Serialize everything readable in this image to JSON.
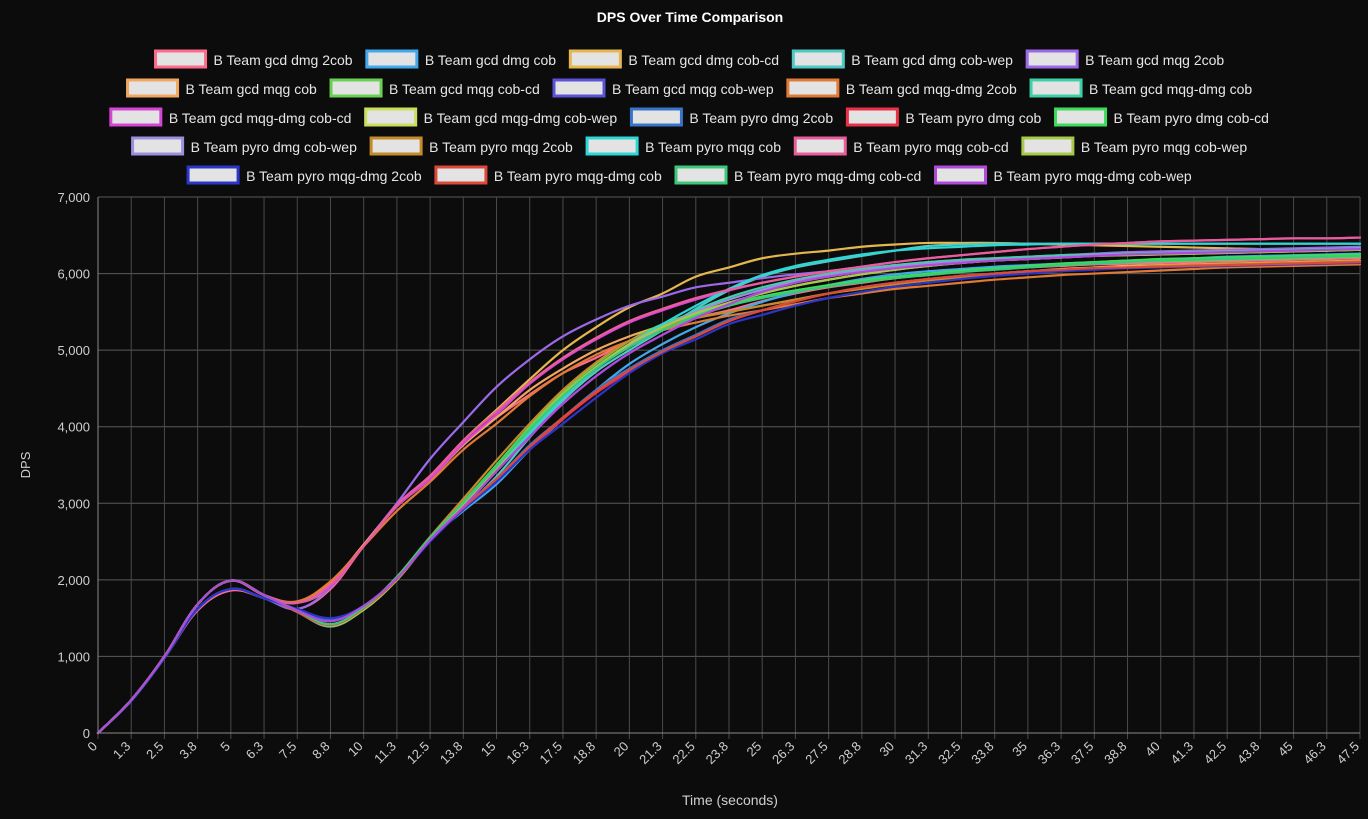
{
  "chart_data": {
    "type": "line",
    "title": "DPS Over Time Comparison",
    "xlabel": "Time (seconds)",
    "ylabel": "DPS",
    "ylim": [
      0,
      7000
    ],
    "yticks": [
      0,
      1000,
      2000,
      3000,
      4000,
      5000,
      6000,
      7000
    ],
    "ytick_labels": [
      "0",
      "1,000",
      "2,000",
      "3,000",
      "4,000",
      "5,000",
      "6,000",
      "7,000"
    ],
    "x_categories": [
      "0",
      "1.3",
      "2.5",
      "3.8",
      "5",
      "6.3",
      "7.5",
      "8.8",
      "10",
      "11.3",
      "12.5",
      "13.8",
      "15",
      "16.3",
      "17.5",
      "18.8",
      "20",
      "21.3",
      "22.5",
      "23.8",
      "25",
      "26.3",
      "27.5",
      "28.8",
      "30",
      "31.3",
      "32.5",
      "33.8",
      "35",
      "36.3",
      "37.5",
      "38.8",
      "40",
      "41.3",
      "42.5",
      "43.8",
      "45",
      "46.3",
      "47.5"
    ],
    "grid": true,
    "legend_position": "top",
    "series": [
      {
        "name": "B Team gcd dmg 2cob",
        "color": "#ff6b8a",
        "values": [
          0,
          420,
          980,
          1600,
          1860,
          1760,
          1620,
          1880,
          2440,
          2960,
          3320,
          3780,
          4120,
          4420,
          4700,
          4900,
          5120,
          5260,
          5420,
          5520,
          5640,
          5740,
          5820,
          5880,
          5940,
          5990,
          6030,
          6060,
          6080,
          6100,
          6120,
          6130,
          6140,
          6150,
          6160,
          6170,
          6180,
          6190,
          6200
        ]
      },
      {
        "name": "B Team gcd dmg cob",
        "color": "#41a9ec",
        "values": [
          0,
          430,
          1000,
          1680,
          1990,
          1800,
          1580,
          1400,
          1620,
          2020,
          2530,
          2900,
          3250,
          3700,
          4100,
          4480,
          4820,
          5080,
          5300,
          5480,
          5630,
          5750,
          5850,
          5930,
          5990,
          6030,
          6060,
          6090,
          6110,
          6130,
          6150,
          6170,
          6180,
          6200,
          6220,
          6230,
          6240,
          6250,
          6260
        ]
      },
      {
        "name": "B Team gcd dmg cob-cd",
        "color": "#e6b74f",
        "values": [
          0,
          430,
          1000,
          1680,
          1990,
          1800,
          1700,
          1910,
          2450,
          2980,
          3340,
          3820,
          4220,
          4620,
          5000,
          5300,
          5560,
          5740,
          5960,
          6080,
          6200,
          6260,
          6300,
          6350,
          6380,
          6400,
          6400,
          6400,
          6390,
          6380,
          6370,
          6360,
          6350,
          6340,
          6330,
          6320,
          6320,
          6310,
          6310
        ]
      },
      {
        "name": "B Team gcd dmg cob-wep",
        "color": "#4fc9c3",
        "values": [
          0,
          430,
          1000,
          1680,
          1990,
          1800,
          1580,
          1390,
          1610,
          2000,
          2520,
          2930,
          3350,
          3860,
          4340,
          4720,
          5000,
          5260,
          5540,
          5780,
          5960,
          6080,
          6160,
          6230,
          6300,
          6360,
          6380,
          6390,
          6390,
          6390,
          6390,
          6390,
          6390,
          6390,
          6390,
          6390,
          6390,
          6390,
          6390
        ]
      },
      {
        "name": "B Team gcd mqg 2cob",
        "color": "#9c6ae8",
        "values": [
          0,
          420,
          980,
          1620,
          1880,
          1760,
          1620,
          1900,
          2460,
          3000,
          3580,
          4060,
          4520,
          4880,
          5180,
          5400,
          5580,
          5700,
          5820,
          5880,
          5940,
          5990,
          6030,
          6070,
          6110,
          6150,
          6180,
          6200,
          6220,
          6240,
          6260,
          6280,
          6290,
          6300,
          6310,
          6320,
          6330,
          6340,
          6350
        ]
      },
      {
        "name": "B Team gcd mqg cob",
        "color": "#f0a860",
        "values": [
          0,
          430,
          1000,
          1680,
          1990,
          1800,
          1700,
          1960,
          2460,
          2960,
          3320,
          3760,
          4120,
          4480,
          4760,
          5000,
          5180,
          5320,
          5420,
          5500,
          5580,
          5660,
          5740,
          5810,
          5870,
          5920,
          5960,
          6000,
          6030,
          6060,
          6080,
          6100,
          6110,
          6120,
          6130,
          6140,
          6150,
          6160,
          6170
        ]
      },
      {
        "name": "B Team gcd mqg cob-cd",
        "color": "#6ad053",
        "values": [
          0,
          430,
          1000,
          1680,
          1990,
          1800,
          1580,
          1400,
          1620,
          2000,
          2530,
          3000,
          3500,
          4000,
          4460,
          4820,
          5120,
          5340,
          5490,
          5600,
          5700,
          5780,
          5840,
          5890,
          5940,
          5990,
          6030,
          6060,
          6090,
          6110,
          6130,
          6150,
          6160,
          6170,
          6180,
          6190,
          6200,
          6210,
          6220
        ]
      },
      {
        "name": "B Team gcd mqg cob-wep",
        "color": "#5a52d8",
        "values": [
          0,
          430,
          1000,
          1680,
          1990,
          1800,
          1600,
          1460,
          1660,
          2020,
          2520,
          2950,
          3420,
          3870,
          4300,
          4660,
          4960,
          5200,
          5420,
          5600,
          5760,
          5880,
          5960,
          6020,
          6070,
          6110,
          6140,
          6170,
          6190,
          6210,
          6230,
          6250,
          6260,
          6270,
          6280,
          6290,
          6300,
          6310,
          6320
        ]
      },
      {
        "name": "B Team gcd mqg-dmg 2cob",
        "color": "#e07a35",
        "values": [
          0,
          430,
          1000,
          1680,
          1990,
          1800,
          1720,
          1980,
          2440,
          2900,
          3280,
          3700,
          4040,
          4400,
          4700,
          4940,
          5120,
          5260,
          5360,
          5450,
          5520,
          5600,
          5680,
          5740,
          5800,
          5840,
          5880,
          5920,
          5950,
          5980,
          6000,
          6020,
          6040,
          6060,
          6080,
          6090,
          6100,
          6110,
          6120
        ]
      },
      {
        "name": "B Team gcd mqg-dmg cob",
        "color": "#3fd1a6",
        "values": [
          0,
          430,
          1000,
          1680,
          1990,
          1800,
          1590,
          1410,
          1630,
          2020,
          2530,
          2960,
          3420,
          3900,
          4380,
          4760,
          5060,
          5300,
          5520,
          5690,
          5820,
          5920,
          6000,
          6060,
          6110,
          6150,
          6180,
          6200,
          6220,
          6240,
          6250,
          6260,
          6270,
          6280,
          6290,
          6300,
          6310,
          6320,
          6330
        ]
      },
      {
        "name": "B Team gcd mqg-dmg cob-cd",
        "color": "#d645d6",
        "values": [
          0,
          430,
          1000,
          1680,
          1990,
          1800,
          1700,
          1920,
          2440,
          2960,
          3320,
          3780,
          4160,
          4560,
          4880,
          5140,
          5360,
          5520,
          5660,
          5780,
          5880,
          5960,
          6030,
          6090,
          6150,
          6200,
          6240,
          6280,
          6320,
          6350,
          6380,
          6400,
          6420,
          6430,
          6440,
          6450,
          6460,
          6460,
          6470
        ]
      },
      {
        "name": "B Team gcd mqg-dmg cob-wep",
        "color": "#c8e05a",
        "values": [
          0,
          430,
          1000,
          1680,
          1990,
          1800,
          1590,
          1400,
          1610,
          2000,
          2520,
          2980,
          3460,
          3960,
          4420,
          4780,
          5080,
          5300,
          5480,
          5620,
          5740,
          5840,
          5920,
          5990,
          6050,
          6100,
          6140,
          6170,
          6190,
          6210,
          6230,
          6240,
          6250,
          6260,
          6270,
          6280,
          6290,
          6300,
          6310
        ]
      },
      {
        "name": "B Team pyro dmg 2cob",
        "color": "#3a74c9",
        "values": [
          0,
          420,
          980,
          1620,
          1880,
          1760,
          1600,
          1490,
          1660,
          2020,
          2520,
          2940,
          3320,
          3760,
          4120,
          4480,
          4760,
          5000,
          5200,
          5400,
          5520,
          5640,
          5740,
          5820,
          5880,
          5930,
          5970,
          6000,
          6030,
          6050,
          6070,
          6080,
          6090,
          6100,
          6110,
          6120,
          6130,
          6140,
          6150
        ]
      },
      {
        "name": "B Team pyro dmg cob",
        "color": "#e83048",
        "values": [
          0,
          430,
          1000,
          1680,
          1990,
          1800,
          1580,
          1400,
          1620,
          2020,
          2520,
          2930,
          3300,
          3720,
          4100,
          4440,
          4720,
          4980,
          5180,
          5380,
          5520,
          5640,
          5740,
          5820,
          5880,
          5930,
          5970,
          6000,
          6030,
          6050,
          6070,
          6080,
          6090,
          6100,
          6110,
          6120,
          6130,
          6140,
          6150
        ]
      },
      {
        "name": "B Team pyro dmg cob-cd",
        "color": "#3ddc5b",
        "values": [
          0,
          430,
          1000,
          1680,
          1990,
          1800,
          1590,
          1420,
          1640,
          2040,
          2560,
          3020,
          3500,
          3980,
          4420,
          4780,
          5060,
          5280,
          5460,
          5600,
          5700,
          5780,
          5850,
          5910,
          5960,
          6000,
          6040,
          6070,
          6100,
          6130,
          6150,
          6170,
          6190,
          6200,
          6210,
          6220,
          6230,
          6240,
          6250
        ]
      },
      {
        "name": "B Team pyro dmg cob-wep",
        "color": "#9d8fe0",
        "values": [
          0,
          430,
          1000,
          1680,
          1990,
          1800,
          1590,
          1400,
          1610,
          2000,
          2520,
          2980,
          3440,
          3920,
          4380,
          4760,
          5060,
          5300,
          5500,
          5660,
          5790,
          5900,
          5980,
          6040,
          6090,
          6130,
          6160,
          6180,
          6200,
          6220,
          6240,
          6250,
          6260,
          6270,
          6280,
          6290,
          6300,
          6310,
          6320
        ]
      },
      {
        "name": "B Team pyro mqg 2cob",
        "color": "#c58a2a",
        "values": [
          0,
          430,
          1000,
          1680,
          1990,
          1800,
          1600,
          1420,
          1640,
          2020,
          2560,
          3060,
          3560,
          4040,
          4480,
          4840,
          5120,
          5300,
          5420,
          5500,
          5580,
          5660,
          5740,
          5800,
          5860,
          5910,
          5950,
          5980,
          6010,
          6040,
          6060,
          6080,
          6100,
          6110,
          6120,
          6130,
          6140,
          6150,
          6160
        ]
      },
      {
        "name": "B Team pyro mqg cob",
        "color": "#2ed6d6",
        "values": [
          0,
          430,
          1000,
          1680,
          1990,
          1800,
          1590,
          1410,
          1630,
          2020,
          2540,
          2980,
          3440,
          3920,
          4380,
          4760,
          5080,
          5340,
          5580,
          5800,
          5980,
          6100,
          6180,
          6250,
          6300,
          6330,
          6350,
          6370,
          6380,
          6390,
          6390,
          6390,
          6390,
          6390,
          6390,
          6390,
          6390,
          6390,
          6390
        ]
      },
      {
        "name": "B Team pyro mqg cob-cd",
        "color": "#e85d9a",
        "values": [
          0,
          430,
          1000,
          1680,
          1990,
          1800,
          1700,
          1940,
          2440,
          2980,
          3360,
          3820,
          4200,
          4580,
          4900,
          5160,
          5380,
          5540,
          5680,
          5790,
          5880,
          5960,
          6030,
          6090,
          6150,
          6200,
          6240,
          6280,
          6320,
          6350,
          6380,
          6400,
          6420,
          6430,
          6440,
          6450,
          6460,
          6460,
          6470
        ]
      },
      {
        "name": "B Team pyro mqg cob-wep",
        "color": "#a8c84a",
        "values": [
          0,
          430,
          1000,
          1680,
          1990,
          1800,
          1590,
          1400,
          1610,
          2000,
          2520,
          2980,
          3460,
          3960,
          4420,
          4780,
          5080,
          5300,
          5480,
          5620,
          5740,
          5840,
          5920,
          5990,
          6050,
          6100,
          6140,
          6170,
          6190,
          6210,
          6230,
          6240,
          6250,
          6260,
          6270,
          6280,
          6290,
          6300,
          6310
        ]
      },
      {
        "name": "B Team pyro mqg-dmg 2cob",
        "color": "#2b36c8",
        "values": [
          0,
          420,
          980,
          1620,
          1880,
          1760,
          1620,
          1500,
          1660,
          2020,
          2500,
          2920,
          3280,
          3700,
          4040,
          4380,
          4700,
          4960,
          5140,
          5340,
          5460,
          5580,
          5680,
          5760,
          5830,
          5880,
          5930,
          5970,
          6000,
          6030,
          6050,
          6070,
          6080,
          6090,
          6100,
          6110,
          6120,
          6130,
          6140
        ]
      },
      {
        "name": "B Team pyro mqg-dmg cob",
        "color": "#d94a3a",
        "values": [
          0,
          430,
          1000,
          1680,
          1990,
          1800,
          1590,
          1410,
          1630,
          2010,
          2520,
          2940,
          3320,
          3740,
          4120,
          4460,
          4740,
          4980,
          5180,
          5380,
          5520,
          5640,
          5740,
          5820,
          5880,
          5930,
          5970,
          6000,
          6030,
          6050,
          6070,
          6080,
          6090,
          6100,
          6110,
          6120,
          6130,
          6140,
          6150
        ]
      },
      {
        "name": "B Team pyro mqg-dmg cob-cd",
        "color": "#3cc878",
        "values": [
          0,
          430,
          1000,
          1680,
          1990,
          1800,
          1600,
          1420,
          1640,
          2030,
          2550,
          3010,
          3480,
          3960,
          4400,
          4760,
          5040,
          5260,
          5440,
          5580,
          5680,
          5760,
          5830,
          5890,
          5940,
          5980,
          6020,
          6050,
          6080,
          6110,
          6130,
          6150,
          6170,
          6180,
          6190,
          6200,
          6210,
          6220,
          6230
        ]
      },
      {
        "name": "B Team pyro mqg-dmg cob-wep",
        "color": "#b04ad8",
        "values": [
          0,
          430,
          1000,
          1680,
          1990,
          1800,
          1600,
          1460,
          1660,
          2020,
          2520,
          2950,
          3420,
          3870,
          4300,
          4660,
          4960,
          5200,
          5420,
          5600,
          5760,
          5880,
          5960,
          6020,
          6070,
          6110,
          6140,
          6170,
          6190,
          6210,
          6230,
          6250,
          6260,
          6270,
          6280,
          6290,
          6300,
          6310,
          6320
        ]
      }
    ]
  }
}
